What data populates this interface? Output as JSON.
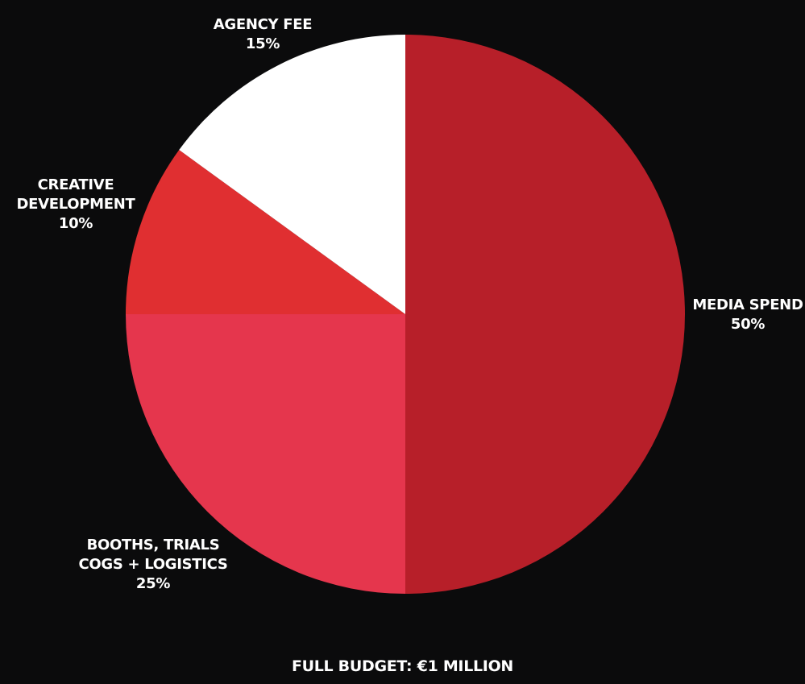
{
  "chart_data": {
    "type": "pie",
    "title": "",
    "slices": [
      {
        "label_lines": [
          "MEDIA SPEND"
        ],
        "percent_label": "50%",
        "value": 50,
        "color": "#b71f29"
      },
      {
        "label_lines": [
          "BOOTHS, TRIALS",
          "COGS + LOGISTICS"
        ],
        "percent_label": "25%",
        "value": 25,
        "color": "#e5364d"
      },
      {
        "label_lines": [
          "CREATIVE",
          "DEVELOPMENT"
        ],
        "percent_label": "10%",
        "value": 10,
        "color": "#e02f31"
      },
      {
        "label_lines": [
          "AGENCY FEE"
        ],
        "percent_label": "15%",
        "value": 15,
        "color": "#ffffff"
      }
    ],
    "start_angle": "12 o'clock",
    "direction": "clockwise",
    "legend": "none (labels outside slices)"
  },
  "footer": {
    "text": "FULL BUDGET: €1 MILLION"
  },
  "colors": {
    "background": "#0b0b0c",
    "text": "#ffffff"
  }
}
